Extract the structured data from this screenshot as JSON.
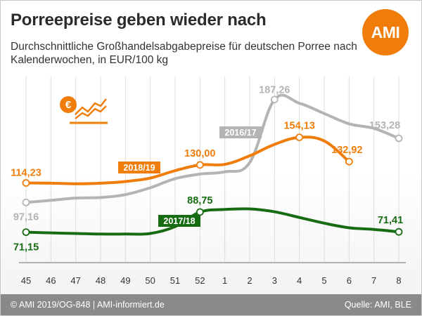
{
  "header": {
    "title": "Porreepreise geben wieder nach",
    "subtitle": "Durchschnittliche Großhandelsabgabepreise für deutschen Porree nach Kalenderwochen, in EUR/100 kg"
  },
  "logo": {
    "text": "AMI",
    "color": "#f07d0a"
  },
  "footer": {
    "left": "© AMI 2019/OG-848 | AMI-informiert.de",
    "right": "Quelle: AMI, BLE"
  },
  "chart_data": {
    "type": "line",
    "title": "Porreepreise geben wieder nach",
    "xlabel": "",
    "ylabel": "",
    "categories": [
      "45",
      "46",
      "47",
      "48",
      "49",
      "50",
      "51",
      "52",
      "1",
      "2",
      "3",
      "4",
      "5",
      "6",
      "7",
      "8"
    ],
    "ylim": [
      50,
      200
    ],
    "grid": "vertical",
    "series": [
      {
        "name": "2016/17",
        "color": "#b4b4b4",
        "values": [
          97.16,
          99.0,
          101.0,
          101.5,
          104.0,
          110.0,
          118.0,
          122.0,
          124.0,
          132.0,
          187.26,
          184.0,
          175.0,
          166.0,
          162.0,
          153.28
        ],
        "labels": {
          "0": "97,16",
          "10": "187,26",
          "15": "153,28"
        }
      },
      {
        "name": "2018/19",
        "color": "#f07d0a",
        "values": [
          114.23,
          114.0,
          113.5,
          114.0,
          115.5,
          118.5,
          125.0,
          130.0,
          130.5,
          138.0,
          148.0,
          154.13,
          151.0,
          132.92,
          null,
          null
        ],
        "labels": {
          "0": "114,23",
          "7": "130,00",
          "11": "154,13",
          "13": "132,92"
        }
      },
      {
        "name": "2017/18",
        "color": "#176b12",
        "values": [
          71.15,
          70.5,
          70.0,
          69.5,
          69.5,
          70.0,
          76.0,
          88.75,
          91.0,
          91.5,
          89.0,
          84.0,
          79.0,
          75.0,
          73.5,
          71.41
        ],
        "labels": {
          "0": "71,15",
          "7": "88,75",
          "15": "71,41"
        }
      }
    ],
    "legend_labels": [
      {
        "series": "2016/17",
        "text": "2016/17"
      },
      {
        "series": "2018/19",
        "text": "2018/19"
      },
      {
        "series": "2017/18",
        "text": "2017/18"
      }
    ]
  }
}
